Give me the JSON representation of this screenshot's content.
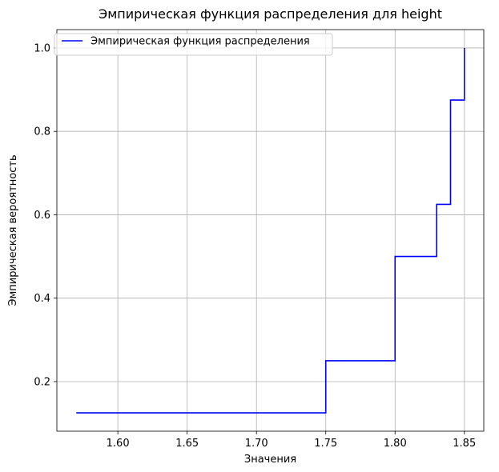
{
  "chart_data": {
    "type": "line",
    "step": "post",
    "title": "Эмпирическая функция распределения для height",
    "xlabel": "Значения",
    "ylabel": "Эмпирическая вероятность",
    "xlim": [
      1.556,
      1.864
    ],
    "ylim": [
      0.081,
      1.044
    ],
    "xticks": [
      1.6,
      1.65,
      1.7,
      1.75,
      1.8,
      1.85
    ],
    "xtick_labels": [
      "1.60",
      "1.65",
      "1.70",
      "1.75",
      "1.80",
      "1.85"
    ],
    "yticks": [
      0.2,
      0.4,
      0.6,
      0.8,
      1.0
    ],
    "ytick_labels": [
      "0.2",
      "0.4",
      "0.6",
      "0.8",
      "1.0"
    ],
    "grid": true,
    "legend_position": "top-left",
    "series": [
      {
        "name": "Эмпирическая функция распределения",
        "color": "#0000ff",
        "x": [
          1.57,
          1.75,
          1.8,
          1.83,
          1.84,
          1.85
        ],
        "y": [
          0.125,
          0.25,
          0.5,
          0.625,
          0.875,
          1.0
        ]
      }
    ]
  }
}
